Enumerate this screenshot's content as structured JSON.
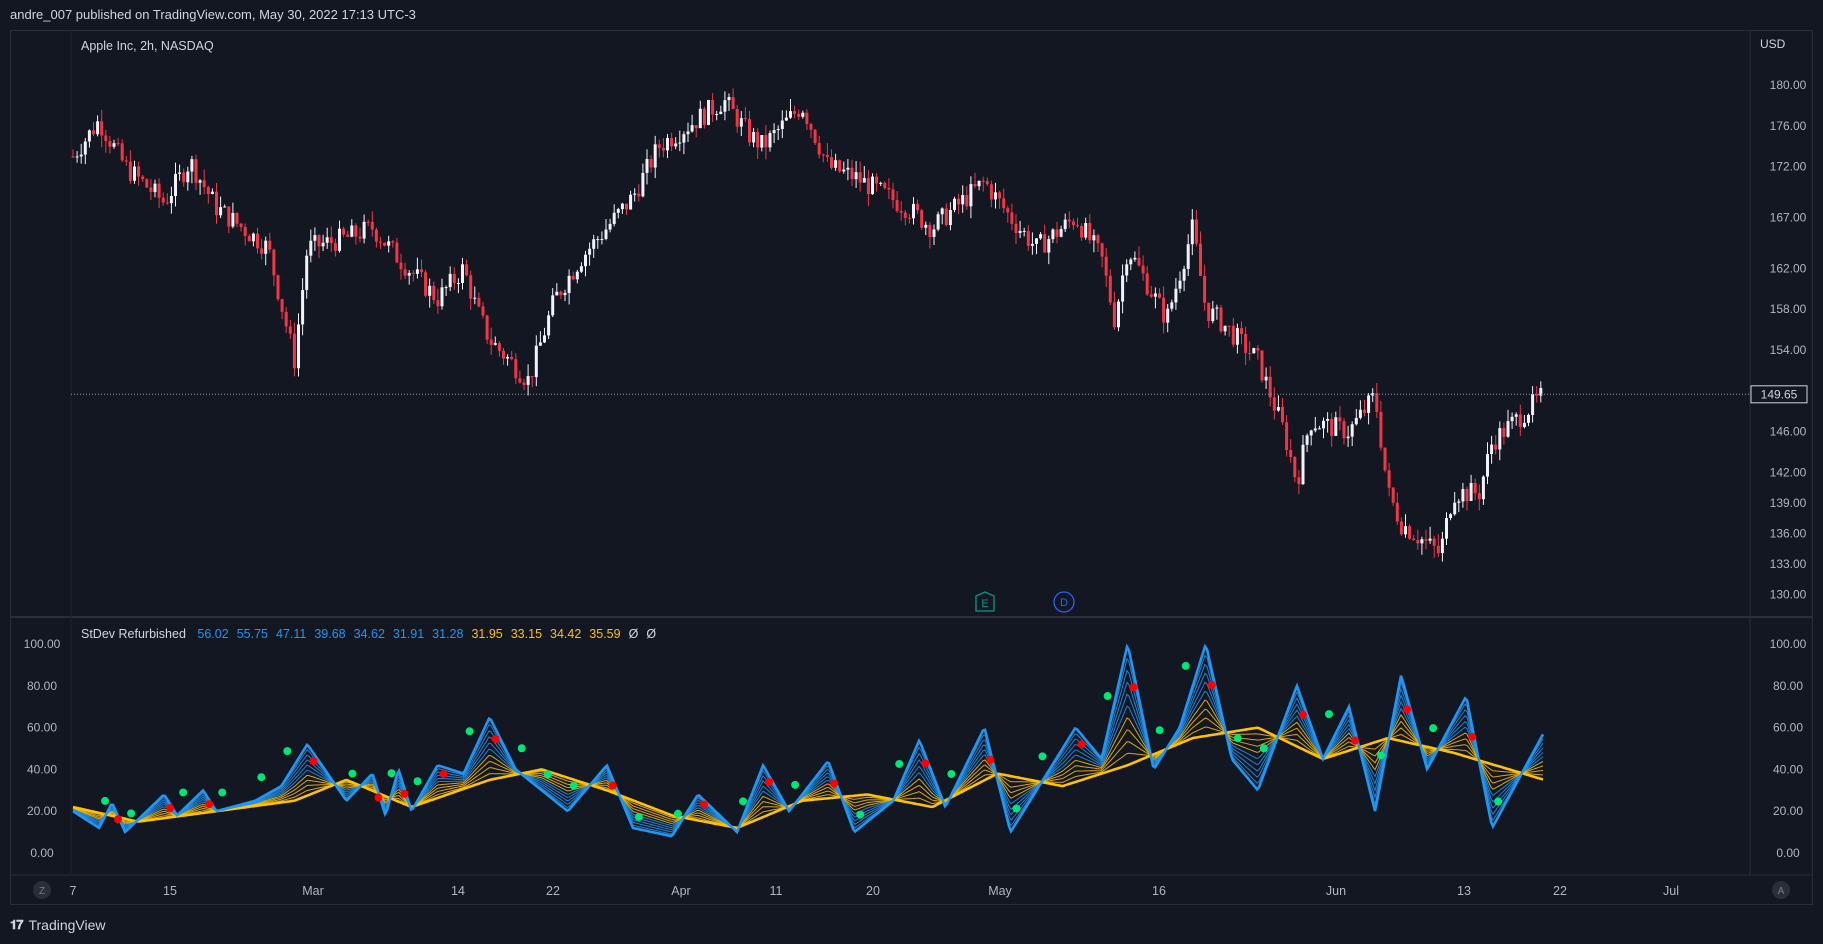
{
  "header": {
    "publish_line": "andre_007 published on TradingView.com, May 30, 2022 17:13 UTC-3"
  },
  "footer": {
    "brand": "TradingView"
  },
  "colors": {
    "background": "#131722",
    "up": "#f0f3fa",
    "down": "#f23645",
    "blue": "#2196f3",
    "yellow": "#ffc107",
    "green": "#4caf50",
    "red_dot": "#ff0000",
    "lime_dot": "#00e676"
  },
  "chart_data": [
    {
      "type": "candlestick",
      "title": "Apple Inc, 2h, NASDAQ",
      "currency": "USD",
      "yticks": [
        "180.00",
        "176.00",
        "172.00",
        "167.00",
        "162.00",
        "158.00",
        "154.00",
        "149.65",
        "146.00",
        "142.00",
        "139.00",
        "136.00",
        "133.00",
        "130.00"
      ],
      "last_price": "149.65",
      "events": [
        "E",
        "D"
      ],
      "x_labels": [
        "7",
        "15",
        "Mar",
        "14",
        "22",
        "Apr",
        "11",
        "20",
        "May",
        "16",
        "Jun",
        "13",
        "22",
        "Jul"
      ],
      "close_path": [
        {
          "date": "2022-02-07",
          "value": 173
        },
        {
          "date": "2022-02-09",
          "value": 176.5
        },
        {
          "date": "2022-02-11",
          "value": 172
        },
        {
          "date": "2022-02-14",
          "value": 168.5
        },
        {
          "date": "2022-02-16",
          "value": 172.5
        },
        {
          "date": "2022-02-18",
          "value": 168
        },
        {
          "date": "2022-02-22",
          "value": 164
        },
        {
          "date": "2022-02-24",
          "value": 153
        },
        {
          "date": "2022-02-25",
          "value": 164
        },
        {
          "date": "2022-02-28",
          "value": 165
        },
        {
          "date": "2022-03-02",
          "value": 166
        },
        {
          "date": "2022-03-04",
          "value": 163
        },
        {
          "date": "2022-03-07",
          "value": 159
        },
        {
          "date": "2022-03-09",
          "value": 162
        },
        {
          "date": "2022-03-10",
          "value": 158
        },
        {
          "date": "2022-03-11",
          "value": 155
        },
        {
          "date": "2022-03-14",
          "value": 151
        },
        {
          "date": "2022-03-16",
          "value": 159
        },
        {
          "date": "2022-03-18",
          "value": 163
        },
        {
          "date": "2022-03-22",
          "value": 169
        },
        {
          "date": "2022-03-24",
          "value": 174
        },
        {
          "date": "2022-03-29",
          "value": 178.5
        },
        {
          "date": "2022-03-31",
          "value": 175
        },
        {
          "date": "2022-04-01",
          "value": 174
        },
        {
          "date": "2022-04-04",
          "value": 178
        },
        {
          "date": "2022-04-06",
          "value": 172
        },
        {
          "date": "2022-04-08",
          "value": 171
        },
        {
          "date": "2022-04-12",
          "value": 168
        },
        {
          "date": "2022-04-14",
          "value": 166
        },
        {
          "date": "2022-04-18",
          "value": 170.5
        },
        {
          "date": "2022-04-20",
          "value": 167
        },
        {
          "date": "2022-04-22",
          "value": 164
        },
        {
          "date": "2022-04-25",
          "value": 167
        },
        {
          "date": "2022-04-27",
          "value": 163
        },
        {
          "date": "2022-04-28",
          "value": 157
        },
        {
          "date": "2022-04-29",
          "value": 164
        },
        {
          "date": "2022-05-02",
          "value": 157
        },
        {
          "date": "2022-05-04",
          "value": 166
        },
        {
          "date": "2022-05-05",
          "value": 158
        },
        {
          "date": "2022-05-06",
          "value": 157
        },
        {
          "date": "2022-05-09",
          "value": 153
        },
        {
          "date": "2022-05-11",
          "value": 146
        },
        {
          "date": "2022-05-12",
          "value": 141
        },
        {
          "date": "2022-05-13",
          "value": 147
        },
        {
          "date": "2022-05-16",
          "value": 146
        },
        {
          "date": "2022-05-18",
          "value": 149.5
        },
        {
          "date": "2022-05-19",
          "value": 140
        },
        {
          "date": "2022-05-20",
          "value": 137
        },
        {
          "date": "2022-05-23",
          "value": 134
        },
        {
          "date": "2022-05-24",
          "value": 140
        },
        {
          "date": "2022-05-25",
          "value": 140
        },
        {
          "date": "2022-05-26",
          "value": 140
        },
        {
          "date": "2022-05-27",
          "value": 145
        },
        {
          "date": "2022-05-31",
          "value": 149.65
        }
      ]
    },
    {
      "type": "line",
      "title": "StDev Refurbished",
      "legend_values": [
        {
          "text": "56.02",
          "color": "#2196f3"
        },
        {
          "text": "55.75",
          "color": "#2196f3"
        },
        {
          "text": "47.11",
          "color": "#2196f3"
        },
        {
          "text": "39.68",
          "color": "#2196f3"
        },
        {
          "text": "34.62",
          "color": "#2196f3"
        },
        {
          "text": "31.91",
          "color": "#2196f3"
        },
        {
          "text": "31.28",
          "color": "#2196f3"
        },
        {
          "text": "31.95",
          "color": "#ffc107"
        },
        {
          "text": "33.15",
          "color": "#ffc107"
        },
        {
          "text": "34.42",
          "color": "#ffc107"
        },
        {
          "text": "35.59",
          "color": "#ffc107"
        },
        {
          "text": "Ø",
          "color": "#d1d4dc"
        },
        {
          "text": "Ø",
          "color": "#d1d4dc"
        }
      ],
      "yticks": [
        "100.00",
        "80.00",
        "60.00",
        "40.00",
        "20.00",
        "0.00"
      ],
      "ylim": [
        0,
        100
      ],
      "fast_line": [
        {
          "date": "2022-02-07",
          "value": 20
        },
        {
          "date": "2022-02-09",
          "value": 12
        },
        {
          "date": "2022-02-10",
          "value": 24
        },
        {
          "date": "2022-02-11",
          "value": 10
        },
        {
          "date": "2022-02-14",
          "value": 28
        },
        {
          "date": "2022-02-15",
          "value": 18
        },
        {
          "date": "2022-02-17",
          "value": 30
        },
        {
          "date": "2022-02-18",
          "value": 20
        },
        {
          "date": "2022-02-21",
          "value": 25
        },
        {
          "date": "2022-02-23",
          "value": 32
        },
        {
          "date": "2022-02-25",
          "value": 52
        },
        {
          "date": "2022-02-28",
          "value": 25
        },
        {
          "date": "2022-03-02",
          "value": 38
        },
        {
          "date": "2022-03-03",
          "value": 18
        },
        {
          "date": "2022-03-04",
          "value": 40
        },
        {
          "date": "2022-03-05",
          "value": 20
        },
        {
          "date": "2022-03-07",
          "value": 42
        },
        {
          "date": "2022-03-09",
          "value": 38
        },
        {
          "date": "2022-03-11",
          "value": 65
        },
        {
          "date": "2022-03-13",
          "value": 40
        },
        {
          "date": "2022-03-15",
          "value": 30
        },
        {
          "date": "2022-03-17",
          "value": 20
        },
        {
          "date": "2022-03-20",
          "value": 42
        },
        {
          "date": "2022-03-22",
          "value": 12
        },
        {
          "date": "2022-03-25",
          "value": 8
        },
        {
          "date": "2022-03-27",
          "value": 28
        },
        {
          "date": "2022-03-30",
          "value": 10
        },
        {
          "date": "2022-04-01",
          "value": 42
        },
        {
          "date": "2022-04-03",
          "value": 20
        },
        {
          "date": "2022-04-06",
          "value": 44
        },
        {
          "date": "2022-04-08",
          "value": 10
        },
        {
          "date": "2022-04-11",
          "value": 25
        },
        {
          "date": "2022-04-13",
          "value": 54
        },
        {
          "date": "2022-04-15",
          "value": 22
        },
        {
          "date": "2022-04-18",
          "value": 60
        },
        {
          "date": "2022-04-20",
          "value": 10
        },
        {
          "date": "2022-04-22",
          "value": 30
        },
        {
          "date": "2022-04-25",
          "value": 60
        },
        {
          "date": "2022-04-27",
          "value": 45
        },
        {
          "date": "2022-04-29",
          "value": 100
        },
        {
          "date": "2022-05-01",
          "value": 40
        },
        {
          "date": "2022-05-03",
          "value": 60
        },
        {
          "date": "2022-05-05",
          "value": 100
        },
        {
          "date": "2022-05-07",
          "value": 45
        },
        {
          "date": "2022-05-09",
          "value": 30
        },
        {
          "date": "2022-05-12",
          "value": 80
        },
        {
          "date": "2022-05-14",
          "value": 45
        },
        {
          "date": "2022-05-16",
          "value": 70
        },
        {
          "date": "2022-05-18",
          "value": 20
        },
        {
          "date": "2022-05-20",
          "value": 85
        },
        {
          "date": "2022-05-22",
          "value": 40
        },
        {
          "date": "2022-05-25",
          "value": 75
        },
        {
          "date": "2022-05-27",
          "value": 12
        },
        {
          "date": "2022-05-31",
          "value": 58
        }
      ],
      "slow_line": [
        {
          "date": "2022-02-07",
          "value": 22
        },
        {
          "date": "2022-02-12",
          "value": 15
        },
        {
          "date": "2022-02-18",
          "value": 20
        },
        {
          "date": "2022-02-24",
          "value": 25
        },
        {
          "date": "2022-02-28",
          "value": 35
        },
        {
          "date": "2022-03-05",
          "value": 22
        },
        {
          "date": "2022-03-11",
          "value": 35
        },
        {
          "date": "2022-03-15",
          "value": 40
        },
        {
          "date": "2022-03-20",
          "value": 30
        },
        {
          "date": "2022-03-25",
          "value": 18
        },
        {
          "date": "2022-03-30",
          "value": 12
        },
        {
          "date": "2022-04-04",
          "value": 25
        },
        {
          "date": "2022-04-09",
          "value": 28
        },
        {
          "date": "2022-04-14",
          "value": 22
        },
        {
          "date": "2022-04-19",
          "value": 38
        },
        {
          "date": "2022-04-24",
          "value": 32
        },
        {
          "date": "2022-04-29",
          "value": 42
        },
        {
          "date": "2022-05-04",
          "value": 55
        },
        {
          "date": "2022-05-09",
          "value": 60
        },
        {
          "date": "2022-05-14",
          "value": 45
        },
        {
          "date": "2022-05-19",
          "value": 55
        },
        {
          "date": "2022-05-24",
          "value": 48
        },
        {
          "date": "2022-05-31",
          "value": 35
        }
      ]
    }
  ]
}
